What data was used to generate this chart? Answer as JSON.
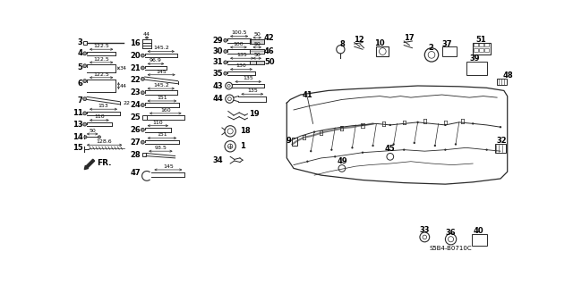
{
  "bg_color": "#ffffff",
  "line_color": "#2a2a2a",
  "text_color": "#000000",
  "part_code": "S5B4-B0710C"
}
